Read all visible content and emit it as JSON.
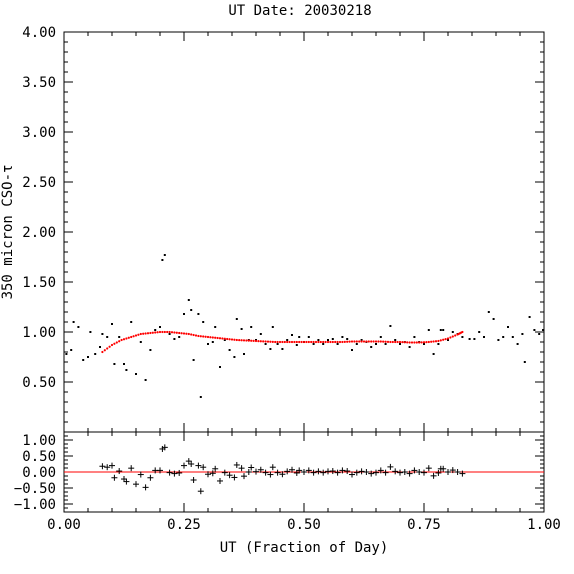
{
  "chart_data": [
    {
      "type": "scatter",
      "title": "UT Date: 20030218",
      "xlabel": "",
      "ylabel": "350 micron CSO-τ",
      "xlim": [
        0.0,
        1.0
      ],
      "ylim": [
        0.0,
        4.0
      ],
      "y_ticks": [
        "0.50",
        "1.00",
        "1.50",
        "2.00",
        "2.50",
        "3.00",
        "3.50",
        "4.00"
      ],
      "fit_color": "#ff0000",
      "point_color": "#000000",
      "series": [
        {
          "kind": "points",
          "values": [
            [
              0.005,
              0.78
            ],
            [
              0.015,
              0.82
            ],
            [
              0.02,
              1.1
            ],
            [
              0.03,
              1.05
            ],
            [
              0.04,
              0.72
            ],
            [
              0.05,
              0.75
            ],
            [
              0.055,
              1.0
            ],
            [
              0.065,
              0.78
            ],
            [
              0.075,
              0.85
            ],
            [
              0.08,
              0.98
            ],
            [
              0.09,
              0.95
            ],
            [
              0.1,
              1.08
            ],
            [
              0.105,
              0.68
            ],
            [
              0.115,
              0.95
            ],
            [
              0.125,
              0.68
            ],
            [
              0.13,
              0.62
            ],
            [
              0.14,
              1.1
            ],
            [
              0.15,
              0.58
            ],
            [
              0.16,
              0.9
            ],
            [
              0.17,
              0.52
            ],
            [
              0.18,
              0.82
            ],
            [
              0.19,
              1.02
            ],
            [
              0.2,
              1.05
            ],
            [
              0.205,
              1.72
            ],
            [
              0.21,
              1.77
            ],
            [
              0.22,
              0.98
            ],
            [
              0.23,
              0.93
            ],
            [
              0.24,
              0.95
            ],
            [
              0.25,
              1.18
            ],
            [
              0.26,
              1.32
            ],
            [
              0.265,
              1.22
            ],
            [
              0.27,
              0.72
            ],
            [
              0.28,
              1.18
            ],
            [
              0.285,
              0.35
            ],
            [
              0.29,
              1.1
            ],
            [
              0.3,
              0.88
            ],
            [
              0.31,
              0.9
            ],
            [
              0.315,
              1.05
            ],
            [
              0.325,
              0.65
            ],
            [
              0.335,
              0.92
            ],
            [
              0.345,
              0.82
            ],
            [
              0.355,
              0.75
            ],
            [
              0.36,
              1.13
            ],
            [
              0.37,
              1.03
            ],
            [
              0.375,
              0.78
            ],
            [
              0.385,
              0.92
            ],
            [
              0.39,
              1.05
            ],
            [
              0.4,
              0.92
            ],
            [
              0.41,
              0.98
            ],
            [
              0.42,
              0.88
            ],
            [
              0.43,
              0.83
            ],
            [
              0.435,
              1.05
            ],
            [
              0.445,
              0.88
            ],
            [
              0.455,
              0.83
            ],
            [
              0.465,
              0.92
            ],
            [
              0.475,
              0.97
            ],
            [
              0.485,
              0.87
            ],
            [
              0.49,
              0.95
            ],
            [
              0.5,
              0.9
            ],
            [
              0.51,
              0.95
            ],
            [
              0.52,
              0.88
            ],
            [
              0.53,
              0.92
            ],
            [
              0.54,
              0.88
            ],
            [
              0.55,
              0.92
            ],
            [
              0.56,
              0.93
            ],
            [
              0.57,
              0.88
            ],
            [
              0.58,
              0.95
            ],
            [
              0.59,
              0.93
            ],
            [
              0.6,
              0.82
            ],
            [
              0.61,
              0.88
            ],
            [
              0.62,
              0.92
            ],
            [
              0.63,
              0.9
            ],
            [
              0.64,
              0.85
            ],
            [
              0.65,
              0.88
            ],
            [
              0.66,
              0.95
            ],
            [
              0.67,
              0.88
            ],
            [
              0.68,
              1.06
            ],
            [
              0.69,
              0.92
            ],
            [
              0.7,
              0.88
            ],
            [
              0.71,
              0.9
            ],
            [
              0.72,
              0.85
            ],
            [
              0.73,
              0.95
            ],
            [
              0.74,
              0.9
            ],
            [
              0.75,
              0.88
            ],
            [
              0.76,
              1.02
            ],
            [
              0.77,
              0.78
            ],
            [
              0.78,
              0.88
            ],
            [
              0.785,
              1.02
            ],
            [
              0.79,
              1.02
            ],
            [
              0.8,
              0.92
            ],
            [
              0.81,
              1.0
            ],
            [
              0.82,
              0.98
            ],
            [
              0.83,
              0.95
            ],
            [
              0.845,
              0.93
            ],
            [
              0.855,
              0.93
            ],
            [
              0.865,
              1.0
            ],
            [
              0.875,
              0.95
            ],
            [
              0.885,
              1.2
            ],
            [
              0.895,
              1.13
            ],
            [
              0.905,
              0.92
            ],
            [
              0.915,
              0.95
            ],
            [
              0.925,
              1.05
            ],
            [
              0.935,
              0.95
            ],
            [
              0.945,
              0.88
            ],
            [
              0.955,
              0.98
            ],
            [
              0.96,
              0.7
            ],
            [
              0.97,
              1.15
            ],
            [
              0.98,
              1.02
            ],
            [
              0.99,
              0.98
            ],
            [
              0.998,
              1.02
            ]
          ]
        },
        {
          "kind": "fit",
          "values": [
            [
              0.08,
              0.8
            ],
            [
              0.1,
              0.87
            ],
            [
              0.12,
              0.92
            ],
            [
              0.14,
              0.95
            ],
            [
              0.16,
              0.98
            ],
            [
              0.18,
              0.99
            ],
            [
              0.2,
              1.0
            ],
            [
              0.22,
              1.0
            ],
            [
              0.24,
              0.99
            ],
            [
              0.26,
              0.98
            ],
            [
              0.28,
              0.96
            ],
            [
              0.3,
              0.95
            ],
            [
              0.32,
              0.94
            ],
            [
              0.34,
              0.93
            ],
            [
              0.36,
              0.92
            ],
            [
              0.38,
              0.915
            ],
            [
              0.4,
              0.91
            ],
            [
              0.42,
              0.905
            ],
            [
              0.44,
              0.9
            ],
            [
              0.46,
              0.9
            ],
            [
              0.48,
              0.9
            ],
            [
              0.5,
              0.9
            ],
            [
              0.52,
              0.9
            ],
            [
              0.54,
              0.9
            ],
            [
              0.56,
              0.9
            ],
            [
              0.58,
              0.9
            ],
            [
              0.6,
              0.905
            ],
            [
              0.62,
              0.905
            ],
            [
              0.64,
              0.905
            ],
            [
              0.66,
              0.905
            ],
            [
              0.68,
              0.9
            ],
            [
              0.7,
              0.9
            ],
            [
              0.72,
              0.895
            ],
            [
              0.74,
              0.895
            ],
            [
              0.76,
              0.9
            ],
            [
              0.78,
              0.91
            ],
            [
              0.8,
              0.935
            ],
            [
              0.82,
              0.975
            ],
            [
              0.83,
              1.0
            ]
          ]
        }
      ]
    },
    {
      "type": "scatter",
      "title": "",
      "xlabel": "UT (Fraction of Day)",
      "ylabel": "",
      "xlim": [
        0.0,
        1.0
      ],
      "ylim": [
        -1.25,
        1.25
      ],
      "x_ticks": [
        "0.00",
        "0.25",
        "0.50",
        "0.75",
        "1.00"
      ],
      "y_ticks": [
        "−1.00",
        "−0.50",
        "0.00",
        "0.50",
        "1.00"
      ],
      "series": [
        {
          "kind": "residuals",
          "values": [
            [
              0.08,
              0.18
            ],
            [
              0.09,
              0.15
            ],
            [
              0.1,
              0.2
            ],
            [
              0.105,
              -0.18
            ],
            [
              0.115,
              0.03
            ],
            [
              0.125,
              -0.22
            ],
            [
              0.13,
              -0.3
            ],
            [
              0.14,
              0.12
            ],
            [
              0.15,
              -0.38
            ],
            [
              0.16,
              -0.08
            ],
            [
              0.17,
              -0.48
            ],
            [
              0.18,
              -0.18
            ],
            [
              0.19,
              0.05
            ],
            [
              0.2,
              0.05
            ],
            [
              0.205,
              0.72
            ],
            [
              0.21,
              0.77
            ],
            [
              0.22,
              -0.02
            ],
            [
              0.23,
              -0.05
            ],
            [
              0.24,
              -0.03
            ],
            [
              0.25,
              0.2
            ],
            [
              0.26,
              0.34
            ],
            [
              0.265,
              0.25
            ],
            [
              0.27,
              -0.25
            ],
            [
              0.28,
              0.2
            ],
            [
              0.285,
              -0.6
            ],
            [
              0.29,
              0.15
            ],
            [
              0.3,
              -0.07
            ],
            [
              0.31,
              -0.04
            ],
            [
              0.315,
              0.1
            ],
            [
              0.325,
              -0.28
            ],
            [
              0.335,
              -0.02
            ],
            [
              0.345,
              -0.1
            ],
            [
              0.355,
              -0.17
            ],
            [
              0.36,
              0.22
            ],
            [
              0.37,
              0.12
            ],
            [
              0.375,
              -0.13
            ],
            [
              0.385,
              0.0
            ],
            [
              0.39,
              0.14
            ],
            [
              0.4,
              0.01
            ],
            [
              0.41,
              0.07
            ],
            [
              0.42,
              -0.02
            ],
            [
              0.43,
              -0.08
            ],
            [
              0.435,
              0.15
            ],
            [
              0.445,
              -0.02
            ],
            [
              0.455,
              -0.07
            ],
            [
              0.465,
              0.02
            ],
            [
              0.475,
              0.07
            ],
            [
              0.485,
              -0.03
            ],
            [
              0.49,
              0.05
            ],
            [
              0.5,
              0.0
            ],
            [
              0.51,
              0.05
            ],
            [
              0.52,
              -0.02
            ],
            [
              0.53,
              0.02
            ],
            [
              0.54,
              -0.02
            ],
            [
              0.55,
              0.02
            ],
            [
              0.56,
              0.03
            ],
            [
              0.57,
              -0.02
            ],
            [
              0.58,
              0.05
            ],
            [
              0.59,
              0.03
            ],
            [
              0.6,
              -0.08
            ],
            [
              0.61,
              -0.02
            ],
            [
              0.62,
              0.02
            ],
            [
              0.63,
              0.0
            ],
            [
              0.64,
              -0.05
            ],
            [
              0.65,
              -0.02
            ],
            [
              0.66,
              0.05
            ],
            [
              0.67,
              -0.02
            ],
            [
              0.68,
              0.16
            ],
            [
              0.69,
              0.02
            ],
            [
              0.7,
              -0.02
            ],
            [
              0.71,
              0.0
            ],
            [
              0.72,
              -0.05
            ],
            [
              0.73,
              0.05
            ],
            [
              0.74,
              0.0
            ],
            [
              0.75,
              -0.02
            ],
            [
              0.76,
              0.12
            ],
            [
              0.77,
              -0.12
            ],
            [
              0.78,
              -0.03
            ],
            [
              0.785,
              0.1
            ],
            [
              0.79,
              0.1
            ],
            [
              0.8,
              0.0
            ],
            [
              0.81,
              0.06
            ],
            [
              0.82,
              0.0
            ],
            [
              0.83,
              -0.05
            ]
          ]
        },
        {
          "kind": "zero_line",
          "values": [
            [
              0.0,
              0.0
            ],
            [
              1.0,
              0.0
            ]
          ]
        }
      ]
    }
  ]
}
